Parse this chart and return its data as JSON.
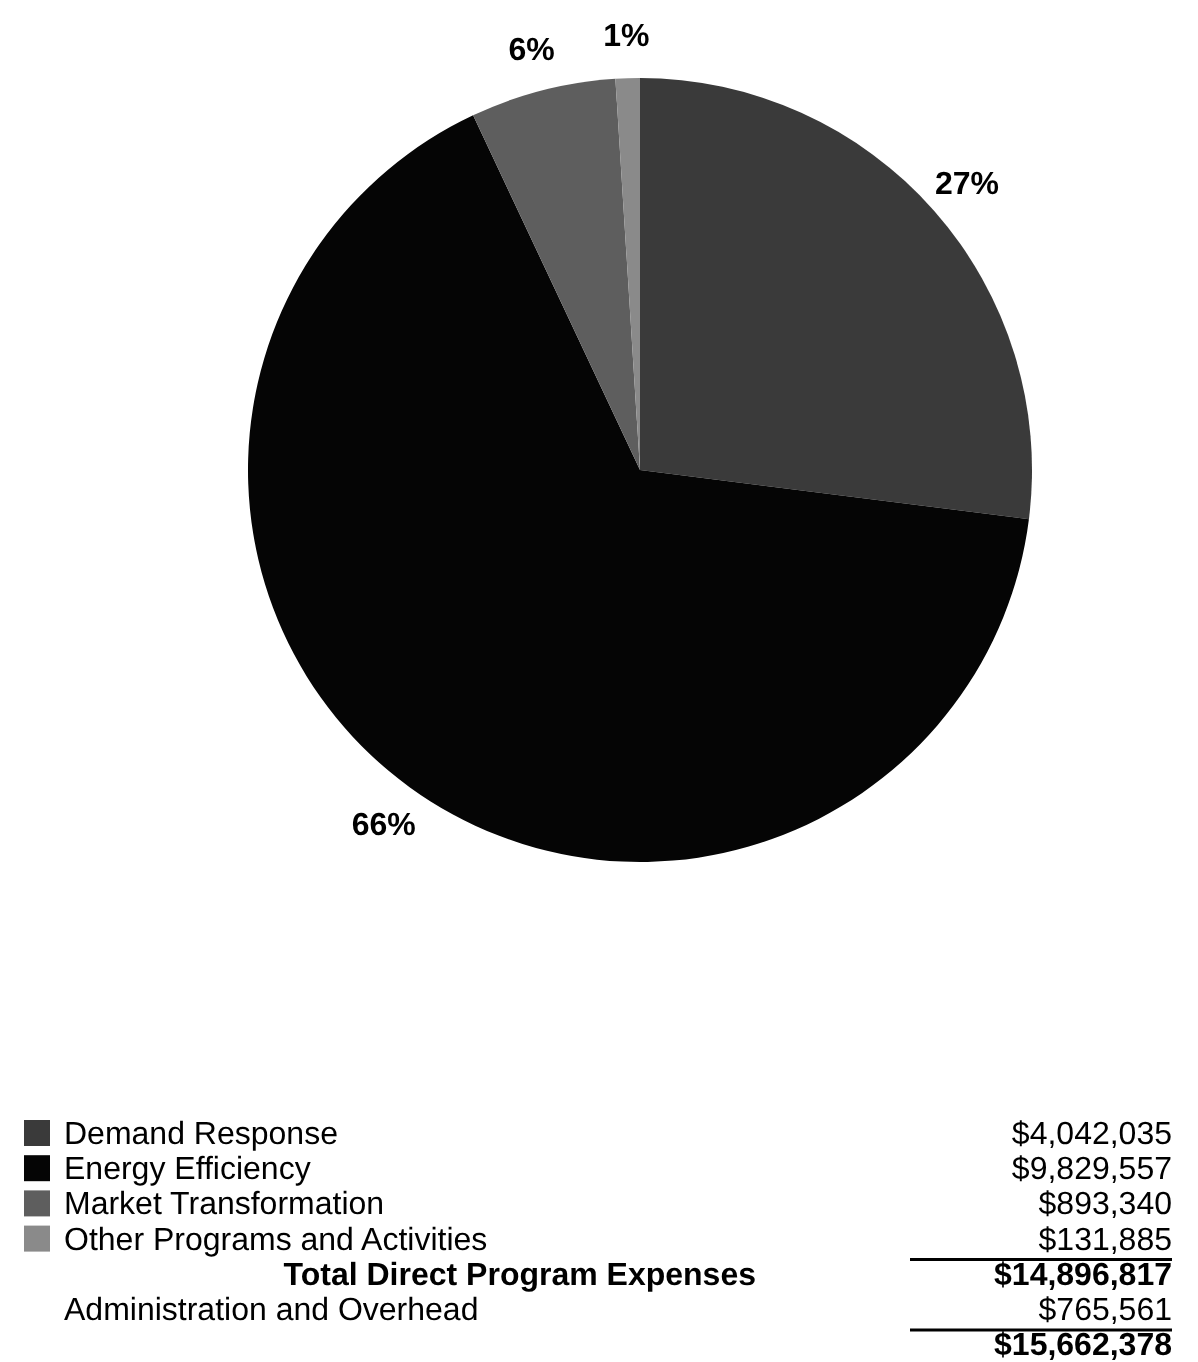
{
  "chart_data": {
    "type": "pie",
    "categories": [
      "Demand Response",
      "Energy Efficiency",
      "Market Transformation",
      "Other Programs and Activities"
    ],
    "values": [
      27,
      66,
      6,
      1
    ],
    "colors": [
      "#3a3a3a",
      "#050505",
      "#5e5e5e",
      "#8a8a8a"
    ],
    "value_labels": [
      "27%",
      "66%",
      "6%",
      "1%"
    ],
    "legend": "bottom",
    "annotations": [
      "$4,042,035",
      "$9,829,557",
      "$893,340",
      "$131,885",
      "Total Direct Program Expenses",
      "$14,896,817",
      "Administration and Overhead",
      "$765,561",
      "$15,662,378"
    ]
  }
}
